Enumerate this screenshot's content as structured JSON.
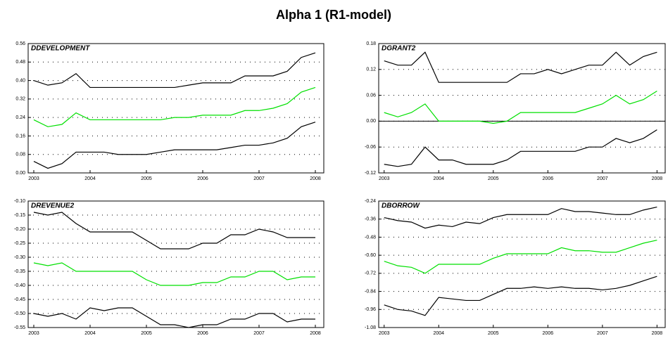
{
  "title": "Alpha 1 (R1-model)",
  "chart_data": [
    {
      "type": "line",
      "title": "DDEVELOPMENT",
      "x": [
        2003,
        2003.25,
        2003.5,
        2003.75,
        2004,
        2004.25,
        2004.5,
        2004.75,
        2005,
        2005.25,
        2005.5,
        2005.75,
        2006,
        2006.25,
        2006.5,
        2006.75,
        2007,
        2007.25,
        2007.5,
        2007.75,
        2008
      ],
      "series": [
        {
          "color": "#000000",
          "values": [
            0.4,
            0.38,
            0.39,
            0.43,
            0.37,
            0.37,
            0.37,
            0.37,
            0.37,
            0.37,
            0.37,
            0.38,
            0.39,
            0.39,
            0.39,
            0.42,
            0.42,
            0.42,
            0.44,
            0.5,
            0.52
          ]
        },
        {
          "color": "#00e000",
          "values": [
            0.23,
            0.2,
            0.21,
            0.26,
            0.23,
            0.23,
            0.23,
            0.23,
            0.23,
            0.23,
            0.24,
            0.24,
            0.25,
            0.25,
            0.25,
            0.27,
            0.27,
            0.28,
            0.3,
            0.35,
            0.37
          ]
        },
        {
          "color": "#000000",
          "values": [
            0.05,
            0.02,
            0.04,
            0.09,
            0.09,
            0.09,
            0.08,
            0.08,
            0.08,
            0.09,
            0.1,
            0.1,
            0.1,
            0.1,
            0.11,
            0.12,
            0.12,
            0.13,
            0.15,
            0.2,
            0.22
          ]
        }
      ],
      "xlim": [
        2002.9,
        2008.15
      ],
      "xticks": [
        2003,
        2004,
        2005,
        2006,
        2007,
        2008
      ],
      "ylim": [
        0,
        0.56
      ],
      "yticks": [
        {
          "value": 0,
          "label": "0.00"
        },
        {
          "value": 0.08,
          "label": "0.08"
        },
        {
          "value": 0.16,
          "label": "0.16"
        },
        {
          "value": 0.24,
          "label": "0.24"
        },
        {
          "value": 0.32,
          "label": "0.32"
        },
        {
          "value": 0.4,
          "label": "0.40"
        },
        {
          "value": 0.48,
          "label": "0.48"
        },
        {
          "value": 0.56,
          "label": "0.56"
        }
      ],
      "grid": true,
      "zero_line": false
    },
    {
      "type": "line",
      "title": "DGRANT2",
      "x": [
        2003,
        2003.25,
        2003.5,
        2003.75,
        2004,
        2004.25,
        2004.5,
        2004.75,
        2005,
        2005.25,
        2005.5,
        2005.75,
        2006,
        2006.25,
        2006.5,
        2006.75,
        2007,
        2007.25,
        2007.5,
        2007.75,
        2008
      ],
      "series": [
        {
          "color": "#000000",
          "values": [
            0.14,
            0.13,
            0.13,
            0.16,
            0.09,
            0.09,
            0.09,
            0.09,
            0.09,
            0.09,
            0.11,
            0.11,
            0.12,
            0.11,
            0.12,
            0.13,
            0.13,
            0.16,
            0.13,
            0.15,
            0.16
          ]
        },
        {
          "color": "#00e000",
          "values": [
            0.02,
            0.01,
            0.02,
            0.04,
            0.0,
            0.0,
            0.0,
            0.0,
            -0.005,
            0.0,
            0.02,
            0.02,
            0.02,
            0.02,
            0.02,
            0.03,
            0.04,
            0.06,
            0.04,
            0.05,
            0.07
          ]
        },
        {
          "color": "#000000",
          "values": [
            -0.1,
            -0.105,
            -0.1,
            -0.06,
            -0.09,
            -0.09,
            -0.1,
            -0.1,
            -0.1,
            -0.09,
            -0.07,
            -0.07,
            -0.07,
            -0.07,
            -0.07,
            -0.06,
            -0.06,
            -0.04,
            -0.05,
            -0.04,
            -0.02
          ]
        }
      ],
      "xlim": [
        2002.9,
        2008.15
      ],
      "xticks": [
        2003,
        2004,
        2005,
        2006,
        2007,
        2008
      ],
      "ylim": [
        -0.12,
        0.18
      ],
      "yticks": [
        {
          "value": -0.12,
          "label": "-0.12"
        },
        {
          "value": -0.06,
          "label": "-0.06"
        },
        {
          "value": 0,
          "label": "0.00"
        },
        {
          "value": 0.06,
          "label": "0.06"
        },
        {
          "value": 0.12,
          "label": "0.12"
        },
        {
          "value": 0.18,
          "label": "0.18"
        }
      ],
      "grid": true,
      "zero_line": true
    },
    {
      "type": "line",
      "title": "DREVENUE2",
      "x": [
        2003,
        2003.25,
        2003.5,
        2003.75,
        2004,
        2004.25,
        2004.5,
        2004.75,
        2005,
        2005.25,
        2005.5,
        2005.75,
        2006,
        2006.25,
        2006.5,
        2006.75,
        2007,
        2007.25,
        2007.5,
        2007.75,
        2008
      ],
      "series": [
        {
          "color": "#000000",
          "values": [
            -0.14,
            -0.15,
            -0.14,
            -0.18,
            -0.21,
            -0.21,
            -0.21,
            -0.21,
            -0.24,
            -0.27,
            -0.27,
            -0.27,
            -0.25,
            -0.25,
            -0.22,
            -0.22,
            -0.2,
            -0.21,
            -0.23,
            -0.23,
            -0.23
          ]
        },
        {
          "color": "#00e000",
          "values": [
            -0.32,
            -0.33,
            -0.32,
            -0.35,
            -0.35,
            -0.35,
            -0.35,
            -0.35,
            -0.38,
            -0.4,
            -0.4,
            -0.4,
            -0.39,
            -0.39,
            -0.37,
            -0.37,
            -0.35,
            -0.35,
            -0.38,
            -0.37,
            -0.37
          ]
        },
        {
          "color": "#000000",
          "values": [
            -0.5,
            -0.51,
            -0.5,
            -0.52,
            -0.48,
            -0.49,
            -0.48,
            -0.48,
            -0.51,
            -0.54,
            -0.54,
            -0.55,
            -0.54,
            -0.54,
            -0.52,
            -0.52,
            -0.5,
            -0.5,
            -0.53,
            -0.52,
            -0.52
          ]
        }
      ],
      "xlim": [
        2002.9,
        2008.15
      ],
      "xticks": [
        2003,
        2004,
        2005,
        2006,
        2007,
        2008
      ],
      "ylim": [
        -0.55,
        -0.1
      ],
      "yticks": [
        {
          "value": -0.55,
          "label": "-0.55"
        },
        {
          "value": -0.5,
          "label": "-0.50"
        },
        {
          "value": -0.45,
          "label": "-0.45"
        },
        {
          "value": -0.4,
          "label": "-0.40"
        },
        {
          "value": -0.35,
          "label": "-0.35"
        },
        {
          "value": -0.3,
          "label": "-0.30"
        },
        {
          "value": -0.25,
          "label": "-0.25"
        },
        {
          "value": -0.2,
          "label": "-0.20"
        },
        {
          "value": -0.15,
          "label": "-0.15"
        },
        {
          "value": -0.1,
          "label": "-0.10"
        }
      ],
      "grid": true,
      "zero_line": false
    },
    {
      "type": "line",
      "title": "DBORROW",
      "x": [
        2003,
        2003.25,
        2003.5,
        2003.75,
        2004,
        2004.25,
        2004.5,
        2004.75,
        2005,
        2005.25,
        2005.5,
        2005.75,
        2006,
        2006.25,
        2006.5,
        2006.75,
        2007,
        2007.25,
        2007.5,
        2007.75,
        2008
      ],
      "series": [
        {
          "color": "#000000",
          "values": [
            -0.35,
            -0.37,
            -0.38,
            -0.42,
            -0.4,
            -0.41,
            -0.38,
            -0.39,
            -0.35,
            -0.33,
            -0.33,
            -0.33,
            -0.33,
            -0.29,
            -0.31,
            -0.31,
            -0.32,
            -0.33,
            -0.33,
            -0.3,
            -0.28
          ]
        },
        {
          "color": "#00e000",
          "values": [
            -0.64,
            -0.67,
            -0.68,
            -0.72,
            -0.66,
            -0.66,
            -0.66,
            -0.66,
            -0.62,
            -0.59,
            -0.59,
            -0.59,
            -0.59,
            -0.55,
            -0.57,
            -0.57,
            -0.58,
            -0.58,
            -0.55,
            -0.52,
            -0.5
          ]
        },
        {
          "color": "#000000",
          "values": [
            -0.93,
            -0.96,
            -0.97,
            -1.0,
            -0.88,
            -0.89,
            -0.9,
            -0.9,
            -0.86,
            -0.82,
            -0.82,
            -0.81,
            -0.82,
            -0.81,
            -0.82,
            -0.82,
            -0.83,
            -0.82,
            -0.8,
            -0.77,
            -0.74
          ]
        }
      ],
      "xlim": [
        2002.9,
        2008.15
      ],
      "xticks": [
        2003,
        2004,
        2005,
        2006,
        2007,
        2008
      ],
      "ylim": [
        -1.08,
        -0.24
      ],
      "yticks": [
        {
          "value": -1.08,
          "label": "-1.08"
        },
        {
          "value": -0.96,
          "label": "-0.96"
        },
        {
          "value": -0.84,
          "label": "-0.84"
        },
        {
          "value": -0.72,
          "label": "-0.72"
        },
        {
          "value": -0.6,
          "label": "-0.60"
        },
        {
          "value": -0.48,
          "label": "-0.48"
        },
        {
          "value": -0.36,
          "label": "-0.36"
        },
        {
          "value": -0.24,
          "label": "-0.24"
        }
      ],
      "grid": true,
      "zero_line": false
    }
  ]
}
